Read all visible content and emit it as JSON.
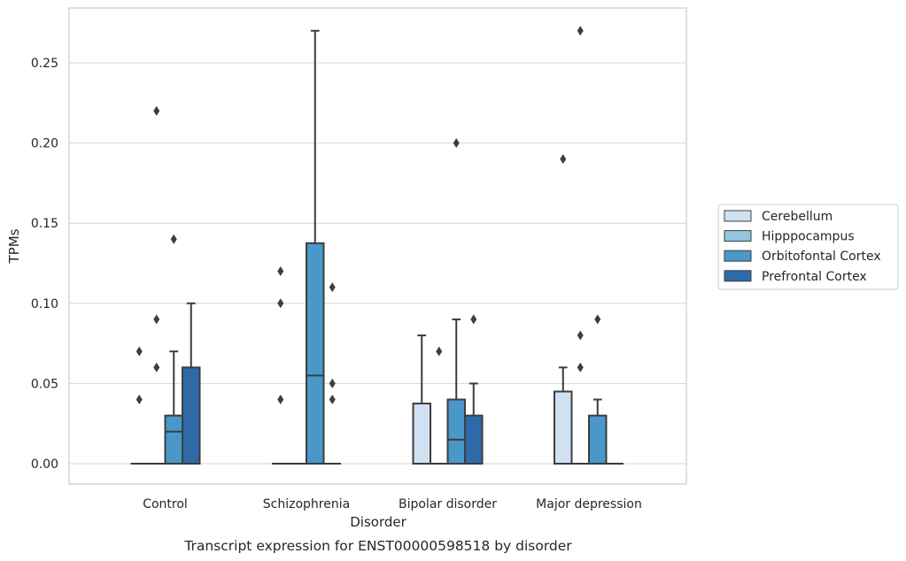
{
  "chart_data": {
    "type": "box",
    "title": "",
    "caption": "Transcript expression for ENST00000598518 by disorder",
    "xlabel": "Disorder",
    "ylabel": "TPMs",
    "ylim": [
      -0.013,
      0.284
    ],
    "yticks": [
      "0.00",
      "0.05",
      "0.10",
      "0.15",
      "0.20",
      "0.25"
    ],
    "ytick_values": [
      0,
      0.05,
      0.1,
      0.15,
      0.2,
      0.25
    ],
    "grid": "horizontal",
    "legend_position": "right",
    "categories": [
      "Control",
      "Schizophrenia",
      "Bipolar disorder",
      "Major depression"
    ],
    "series": [
      {
        "name": "Cerebellum",
        "color": "#d0e1f2",
        "boxes": [
          {
            "q1": 0,
            "median": 0,
            "q3": 0,
            "whisker_low": 0,
            "whisker_high": 0,
            "outliers": [
              0.04,
              0.07
            ]
          },
          {
            "q1": 0,
            "median": 0,
            "q3": 0,
            "whisker_low": 0,
            "whisker_high": 0,
            "outliers": [
              0.04,
              0.1,
              0.12
            ]
          },
          {
            "q1": 0,
            "median": 0,
            "q3": 0.0375,
            "whisker_low": 0,
            "whisker_high": 0.08,
            "outliers": []
          },
          {
            "q1": 0,
            "median": 0,
            "q3": 0.045,
            "whisker_low": 0,
            "whisker_high": 0.06,
            "outliers": [
              0.19
            ]
          }
        ]
      },
      {
        "name": "Hipppocampus",
        "color": "#94c4df",
        "boxes": [
          {
            "q1": 0,
            "median": 0,
            "q3": 0,
            "whisker_low": 0,
            "whisker_high": 0,
            "outliers": [
              0.06,
              0.09,
              0.22
            ]
          },
          {
            "q1": 0,
            "median": 0,
            "q3": 0,
            "whisker_low": 0,
            "whisker_high": 0,
            "outliers": []
          },
          {
            "q1": 0,
            "median": 0,
            "q3": 0,
            "whisker_low": 0,
            "whisker_high": 0,
            "outliers": [
              0.07
            ]
          },
          {
            "q1": 0,
            "median": 0,
            "q3": 0,
            "whisker_low": 0,
            "whisker_high": 0,
            "outliers": [
              0.06,
              0.08,
              0.27
            ]
          }
        ]
      },
      {
        "name": "Orbitofontal Cortex",
        "color": "#4a98c9",
        "boxes": [
          {
            "q1": 0,
            "median": 0.02,
            "q3": 0.03,
            "whisker_low": 0,
            "whisker_high": 0.07,
            "outliers": [
              0.14
            ]
          },
          {
            "q1": 0,
            "median": 0.055,
            "q3": 0.1375,
            "whisker_low": 0,
            "whisker_high": 0.27,
            "outliers": []
          },
          {
            "q1": 0,
            "median": 0.015,
            "q3": 0.04,
            "whisker_low": 0,
            "whisker_high": 0.09,
            "outliers": [
              0.2
            ]
          },
          {
            "q1": 0,
            "median": 0,
            "q3": 0.03,
            "whisker_low": 0,
            "whisker_high": 0.04,
            "outliers": [
              0.09
            ]
          }
        ]
      },
      {
        "name": "Prefrontal Cortex",
        "color": "#2e6aa8",
        "boxes": [
          {
            "q1": 0,
            "median": 0,
            "q3": 0.06,
            "whisker_low": 0,
            "whisker_high": 0.1,
            "outliers": []
          },
          {
            "q1": 0,
            "median": 0,
            "q3": 0,
            "whisker_low": 0,
            "whisker_high": 0,
            "outliers": [
              0.04,
              0.05,
              0.11
            ]
          },
          {
            "q1": 0,
            "median": 0,
            "q3": 0.03,
            "whisker_low": 0,
            "whisker_high": 0.05,
            "outliers": [
              0.09
            ]
          },
          {
            "q1": 0,
            "median": 0,
            "q3": 0,
            "whisker_low": 0,
            "whisker_high": 0,
            "outliers": []
          }
        ]
      }
    ]
  }
}
